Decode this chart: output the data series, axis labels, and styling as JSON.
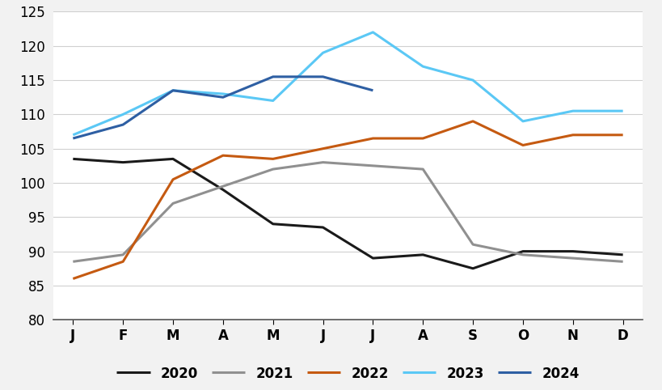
{
  "months": [
    "J",
    "F",
    "M",
    "A",
    "M",
    "J",
    "J",
    "A",
    "S",
    "O",
    "N",
    "D"
  ],
  "series": {
    "2020": [
      103.5,
      103.0,
      103.5,
      99.0,
      94.0,
      93.5,
      89.0,
      89.5,
      87.5,
      90.0,
      90.0,
      89.5
    ],
    "2021": [
      88.5,
      89.5,
      97.0,
      99.5,
      102.0,
      103.0,
      102.5,
      102.0,
      91.0,
      89.5,
      89.0,
      88.5
    ],
    "2022": [
      86.0,
      88.5,
      100.5,
      104.0,
      103.5,
      105.0,
      106.5,
      106.5,
      109.0,
      105.5,
      107.0,
      107.0
    ],
    "2023": [
      107.0,
      110.0,
      113.5,
      113.0,
      112.0,
      119.0,
      122.0,
      117.0,
      115.0,
      109.0,
      110.5,
      110.5
    ],
    "2024": [
      106.5,
      108.5,
      113.5,
      112.5,
      115.5,
      115.5,
      113.5,
      null,
      null,
      null,
      null,
      null
    ]
  },
  "colors": {
    "2020": "#1a1a1a",
    "2021": "#909090",
    "2022": "#c55a11",
    "2023": "#5bc8f5",
    "2024": "#2e5fa3"
  },
  "linewidth": 2.2,
  "ylim": [
    80,
    125
  ],
  "yticks": [
    80,
    85,
    90,
    95,
    100,
    105,
    110,
    115,
    120,
    125
  ],
  "background_color": "#f2f2f2",
  "plot_bg_color": "#ffffff",
  "grid_color": "#d0d0d0",
  "legend_order": [
    "2020",
    "2021",
    "2022",
    "2023",
    "2024"
  ]
}
